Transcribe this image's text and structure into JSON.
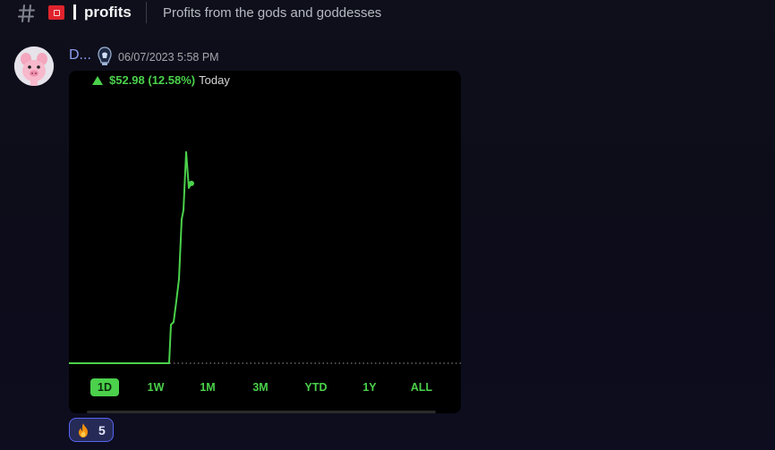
{
  "channel": {
    "name": "profits",
    "topic": "Profits from the gods and goddesses"
  },
  "message": {
    "author": "D...",
    "timestamp": "06/07/2023 5:58 PM",
    "image": {
      "change_value": "$52.98 (12.58%)",
      "period_label": "Today",
      "accent_color": "#4bd14b",
      "ranges": [
        {
          "label": "1D",
          "active": true
        },
        {
          "label": "1W",
          "active": false
        },
        {
          "label": "1M",
          "active": false
        },
        {
          "label": "3M",
          "active": false
        },
        {
          "label": "YTD",
          "active": false
        },
        {
          "label": "1Y",
          "active": false
        },
        {
          "label": "ALL",
          "active": false
        }
      ]
    },
    "reaction": {
      "icon": "fire-icon",
      "count": "5"
    }
  }
}
